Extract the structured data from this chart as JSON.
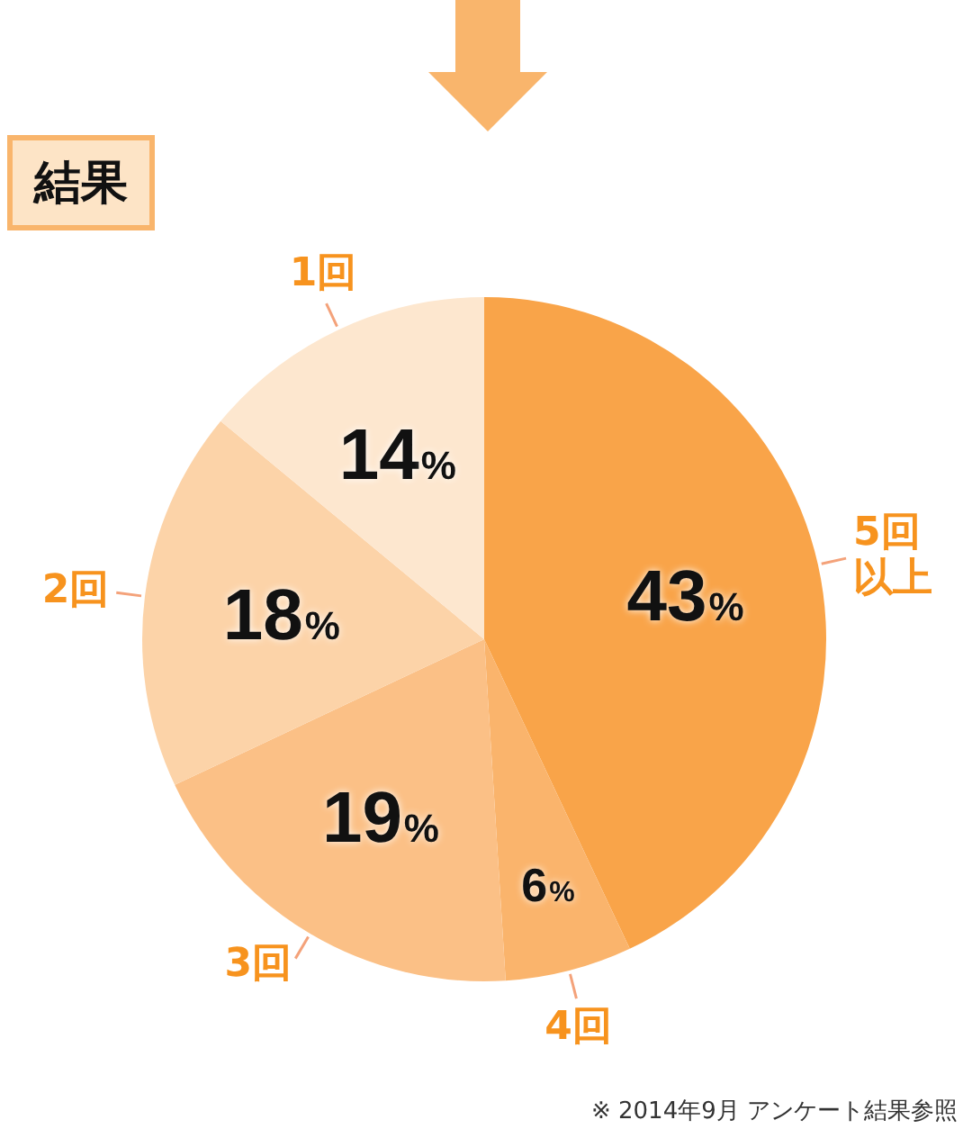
{
  "chart_data": {
    "type": "pie",
    "title": "結果",
    "categories": [
      "5回以上",
      "4回",
      "3回",
      "2回",
      "1回"
    ],
    "values": [
      43,
      6,
      19,
      18,
      14
    ],
    "colors": [
      "#f9a449",
      "#fab46c",
      "#fbc086",
      "#fcd3a8",
      "#fde7cf"
    ],
    "value_labels": [
      "43%",
      "6%",
      "19%",
      "18%",
      "14%"
    ],
    "legend": false,
    "annotations": [
      "※ 2014年9月 アンケート結果参照"
    ]
  }
}
